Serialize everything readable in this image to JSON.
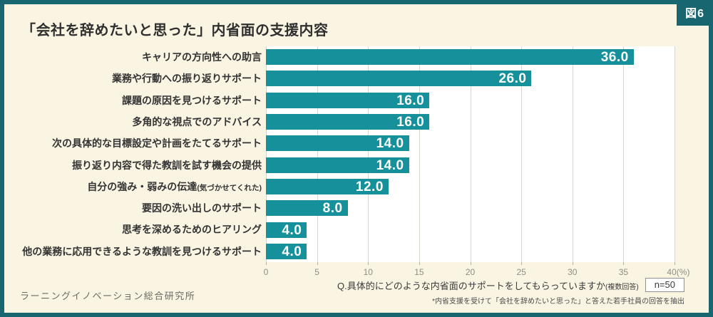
{
  "figure": {
    "badge": "図6"
  },
  "colors": {
    "frame": "#176670",
    "background": "#faf4e2",
    "bar": "#16919c",
    "plot_background": "#ffffff"
  },
  "chart_data": {
    "type": "bar",
    "orientation": "horizontal",
    "title": "「会社を辞めたいと思った」内省面の支援内容",
    "categories": [
      "キャリアの方向性への助言",
      "業務や行動への振り返りサポート",
      "課題の原因を見つけるサポート",
      "多角的な視点でのアドバイス",
      "次の具体的な目標設定や計画をたてるサポート",
      "振り返り内容で得た教訓を試す機会の提供",
      "自分の強み・弱みの伝達(気づかせてくれた)",
      "要因の洗い出しのサポート",
      "思考を深めるためのヒアリング",
      "他の業務に応用できるような教訓を見つけるサポート"
    ],
    "values": [
      36.0,
      26.0,
      16.0,
      16.0,
      14.0,
      14.0,
      12.0,
      8.0,
      4.0,
      4.0
    ],
    "xlim": [
      0,
      40
    ],
    "x_ticks": [
      "0",
      "5",
      "10",
      "15",
      "20",
      "25",
      "30",
      "35",
      "40(%)"
    ],
    "grid": true,
    "unit": "%"
  },
  "footer": {
    "question": "Q.具体的にどのような内省面のサポートをしてもらっていますか(複数回答)",
    "sample_size": "n=50",
    "note": "*内省支援を受けて「会社を辞めたいと思った」と答えた若手社員の回答を抽出",
    "source": "ラーニングイノベーション総合研究所"
  }
}
